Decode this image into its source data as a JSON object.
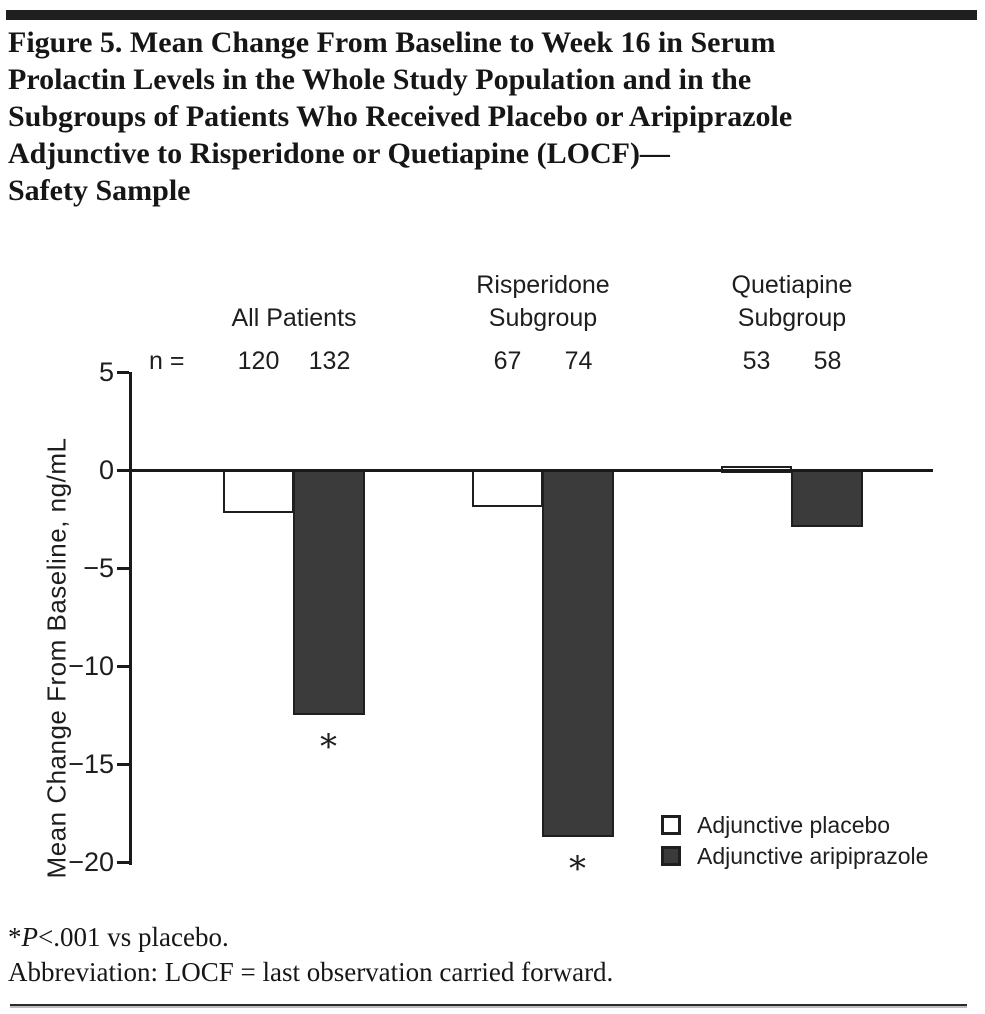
{
  "figure": {
    "title": "Figure 5. Mean Change From Baseline to Week 16 in Serum\nProlactin Levels in the Whole Study Population and in the\nSubgroups of Patients Who Received Placebo or Aripiprazole\nAdjunctive to Risperidone or Quetiapine (LOCF)—\nSafety Sample",
    "footnotes": {
      "sig_marker": "*",
      "sig_italic": "P",
      "sig_rest": "<.001 vs placebo.",
      "abbreviation": "Abbreviation: LOCF = last observation carried forward."
    }
  },
  "chart_data": {
    "type": "bar",
    "title": "Mean Change From Baseline to Week 16 in Serum Prolactin Levels (LOCF) — Safety Sample",
    "ylabel": "Mean Change From Baseline, ng/mL",
    "xlabel": "",
    "categories": [
      "All Patients",
      "Risperidone\nSubgroup",
      "Quetiapine\nSubgroup"
    ],
    "n_row_label": "n =",
    "n_values": [
      [
        120,
        132
      ],
      [
        67,
        74
      ],
      [
        53,
        58
      ]
    ],
    "series": [
      {
        "name": "Adjunctive placebo",
        "style": "open",
        "values": [
          -2.2,
          -1.9,
          0.2
        ],
        "sig_markers": [
          "",
          "",
          ""
        ]
      },
      {
        "name": "Adjunctive aripiprazole",
        "style": "filled",
        "values": [
          -12.5,
          -18.7,
          -2.9
        ],
        "sig_markers": [
          "*",
          "*",
          ""
        ]
      }
    ],
    "ylim": [
      -20,
      5
    ],
    "ytick_values": [
      5,
      0,
      -5,
      -10,
      -15,
      -20
    ],
    "ytick_labels": [
      "5",
      "0",
      "−5",
      "−10",
      "−15",
      "−20"
    ],
    "grid": false,
    "legend_position": "inside-bottom-right",
    "legend": [
      {
        "label": "Adjunctive placebo",
        "swatch": "open"
      },
      {
        "label": "Adjunctive aripiprazole",
        "swatch": "filled"
      }
    ],
    "colors": {
      "bar_fill_filled": "#3b3b3b",
      "bar_fill_open": "#ffffff",
      "line": "#1a1a1a",
      "text": "#1e1e1e"
    }
  }
}
